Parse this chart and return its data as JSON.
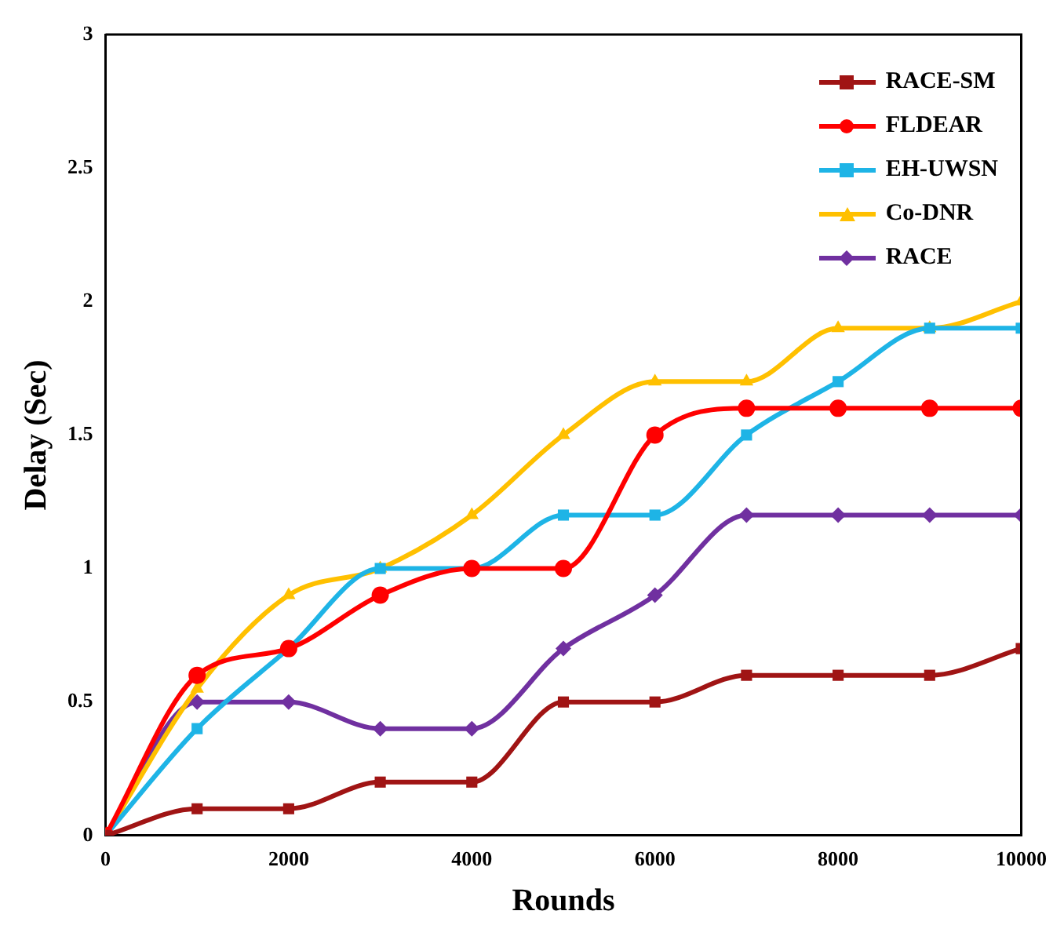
{
  "chart_data": {
    "type": "line",
    "xlabel": "Rounds",
    "ylabel": "Delay (Sec)",
    "x": [
      0,
      1000,
      2000,
      3000,
      4000,
      5000,
      6000,
      7000,
      8000,
      9000,
      10000
    ],
    "xlim": [
      0,
      10000
    ],
    "xticks": [
      0,
      2000,
      4000,
      6000,
      8000,
      10000
    ],
    "ylim": [
      0,
      3
    ],
    "yticks": [
      0,
      0.5,
      1,
      1.5,
      2,
      2.5,
      3
    ],
    "grid": false,
    "legend": "top right",
    "series": [
      {
        "name": "RACE-SM",
        "color": "#a01414",
        "marker": "square",
        "values": [
          0,
          0.1,
          0.1,
          0.2,
          0.2,
          0.5,
          0.5,
          0.6,
          0.6,
          0.6,
          0.7
        ]
      },
      {
        "name": "FLDEAR",
        "color": "#ff0000",
        "marker": "circle",
        "values": [
          0,
          0.6,
          0.7,
          0.9,
          1.0,
          1.0,
          1.5,
          1.6,
          1.6,
          1.6,
          1.6
        ]
      },
      {
        "name": "EH-UWSN",
        "color": "#1eb4e6",
        "marker": "square",
        "values": [
          0,
          0.4,
          0.7,
          1.0,
          1.0,
          1.2,
          1.2,
          1.5,
          1.7,
          1.9,
          1.9
        ]
      },
      {
        "name": "Co-DNR",
        "color": "#ffc000",
        "marker": "triangle",
        "values": [
          0,
          0.55,
          0.9,
          1.0,
          1.2,
          1.5,
          1.7,
          1.7,
          1.9,
          1.9,
          2.0
        ]
      },
      {
        "name": "RACE",
        "color": "#7030a0",
        "marker": "diamond",
        "values": [
          0,
          0.5,
          0.5,
          0.4,
          0.4,
          0.7,
          0.9,
          1.2,
          1.2,
          1.2,
          1.2
        ]
      }
    ]
  }
}
